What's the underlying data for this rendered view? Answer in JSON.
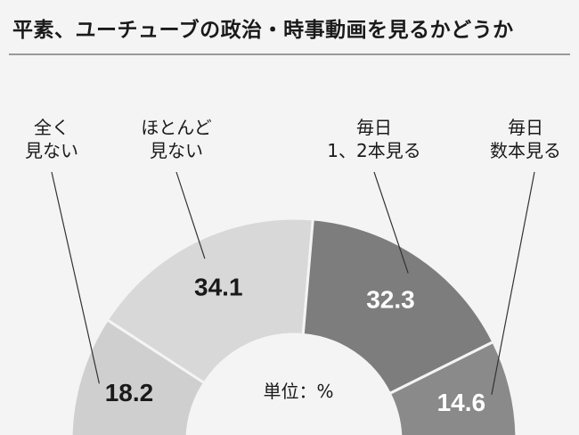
{
  "chart_data": {
    "type": "pie",
    "style": "semi-donut",
    "title": "平素、ユーチューブの政治・時事動画を見るかどうか",
    "unit_label": "単位：%",
    "slices": [
      {
        "label_line1": "全く",
        "label_line2": "見ない",
        "value": 18.2,
        "color": "#cfcfcf",
        "text_color": "#1a1a1a"
      },
      {
        "label_line1": "ほとんど",
        "label_line2": "見ない",
        "value": 34.1,
        "color": "#d8d8d8",
        "text_color": "#1a1a1a"
      },
      {
        "label_line1": "毎日",
        "label_line2": "1、2本見る",
        "value": 32.3,
        "color": "#7d7d7d",
        "text_color": "#ffffff"
      },
      {
        "label_line1": "毎日",
        "label_line2": "数本見る",
        "value": 14.6,
        "color": "#8a8a8a",
        "text_color": "#ffffff"
      }
    ],
    "legend": "none"
  }
}
